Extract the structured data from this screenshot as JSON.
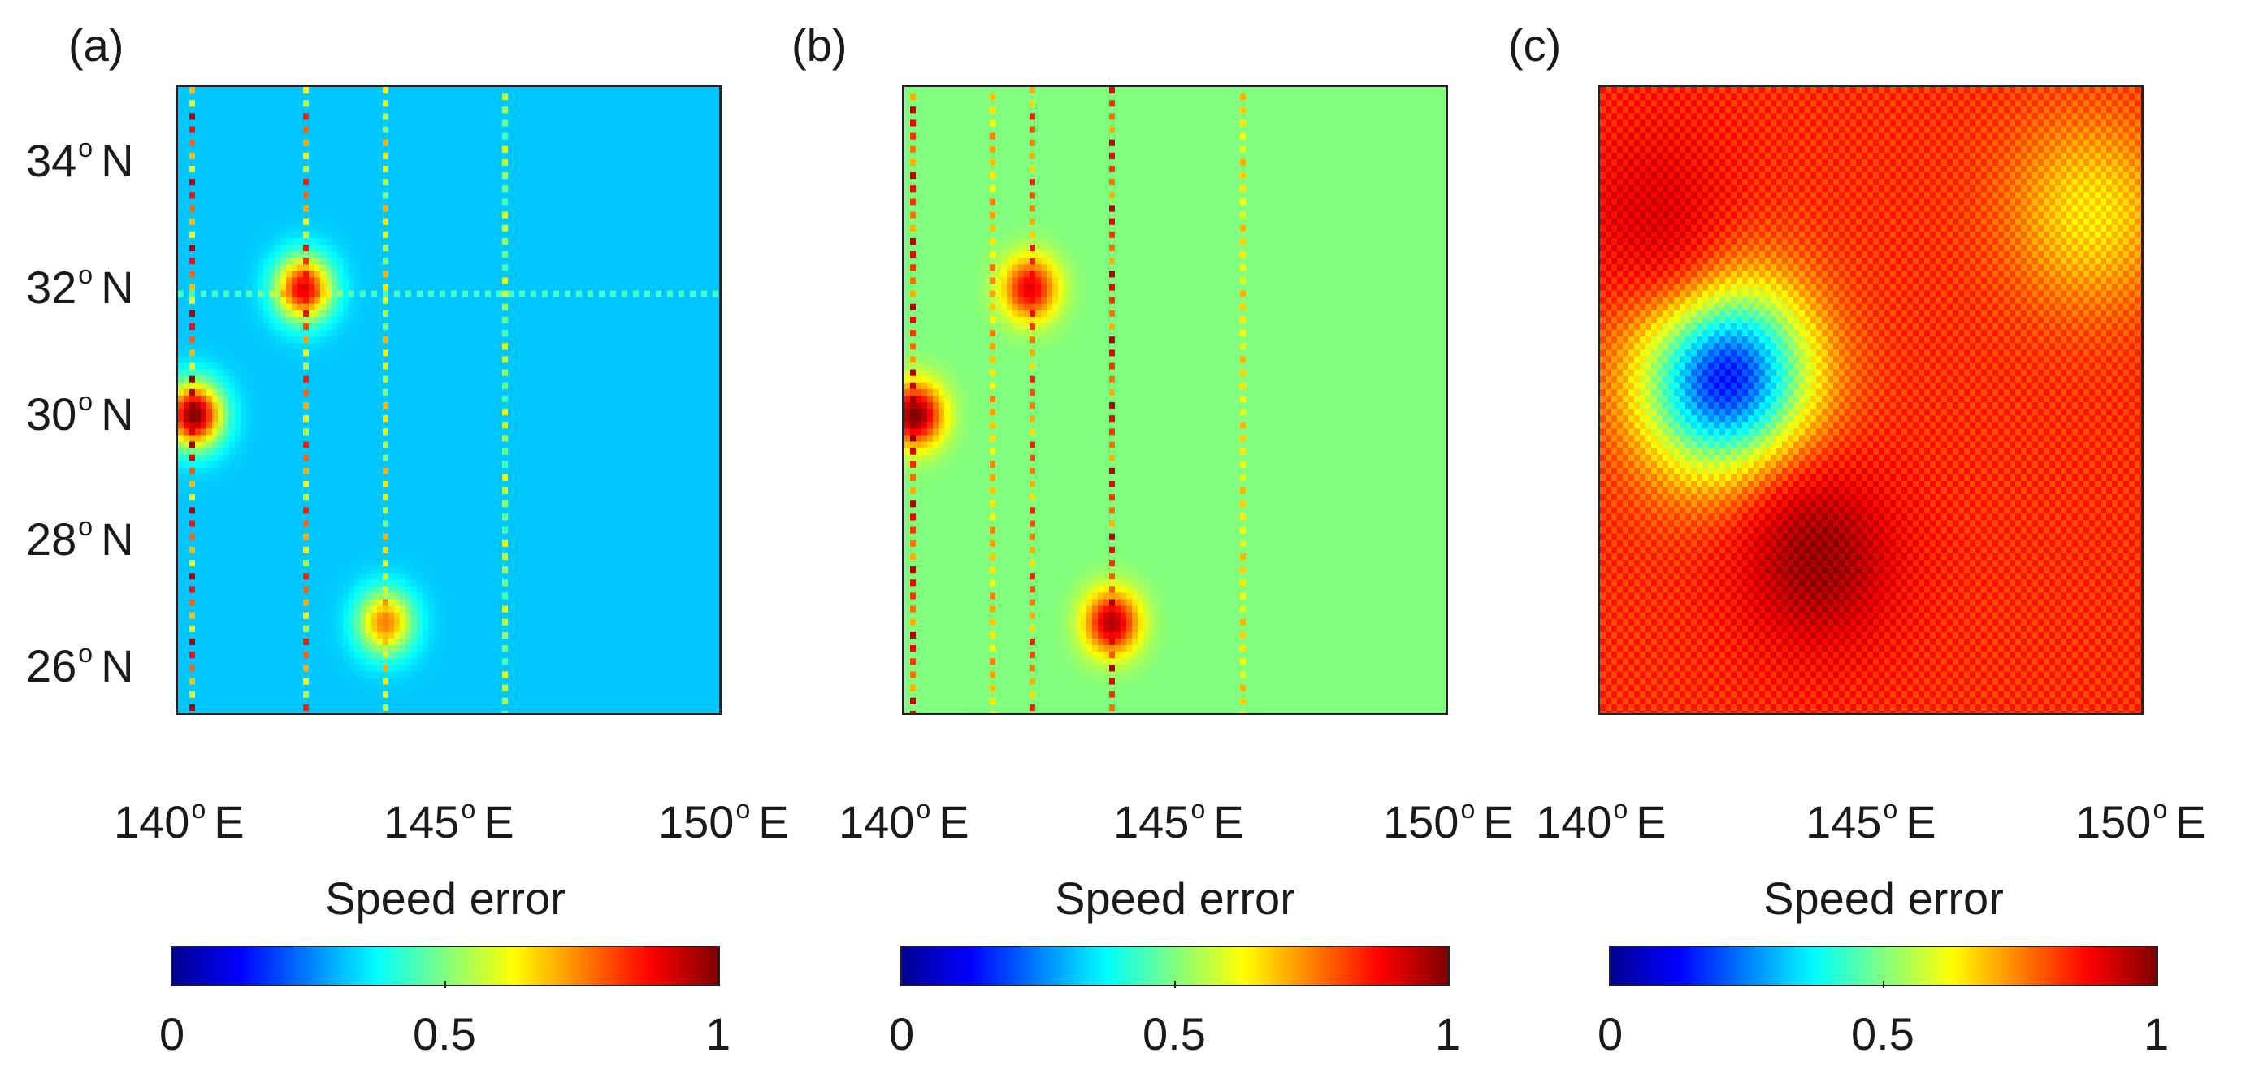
{
  "chart_data": [
    {
      "type": "heatmap",
      "panel_label": "(a)",
      "title": "",
      "xlabel": "",
      "ylabel": "",
      "xlim": [
        140,
        150
      ],
      "ylim": [
        25,
        35
      ],
      "xticks": [
        {
          "value": 140,
          "label": "140",
          "suffix": "E"
        },
        {
          "value": 145,
          "label": "145",
          "suffix": "E"
        },
        {
          "value": 150,
          "label": "150",
          "suffix": "E"
        }
      ],
      "yticks": [
        {
          "value": 34,
          "label": "34",
          "suffix": "N"
        },
        {
          "value": 32,
          "label": "32",
          "suffix": "N"
        },
        {
          "value": 30,
          "label": "30",
          "suffix": "N"
        },
        {
          "value": 28,
          "label": "28",
          "suffix": "N"
        },
        {
          "value": 26,
          "label": "26",
          "suffix": "N"
        }
      ],
      "field": {
        "base_value": 0.32,
        "features": [
          {
            "kind": "stripe-lon",
            "lon": 140.3,
            "value": 0.95
          },
          {
            "kind": "stripe-lon",
            "lon": 142.3,
            "value": 0.85
          },
          {
            "kind": "stripe-lon",
            "lon": 143.8,
            "value": 0.7
          },
          {
            "kind": "stripe-lon",
            "lon": 146.0,
            "value": 0.6
          },
          {
            "kind": "stripe-lat",
            "lat": 31.7,
            "value": 0.5
          },
          {
            "kind": "spot",
            "lon": 140.3,
            "lat": 29.8,
            "value": 1.0
          },
          {
            "kind": "spot",
            "lon": 142.3,
            "lat": 31.8,
            "value": 0.9
          },
          {
            "kind": "spot",
            "lon": 143.8,
            "lat": 26.5,
            "value": 0.75
          }
        ]
      },
      "colorbar": {
        "title": "Speed error",
        "min": 0,
        "max": 1,
        "ticks": [
          0,
          0.5,
          1
        ],
        "tick_labels": [
          "0",
          "0.5",
          "1"
        ],
        "colormap": "jet"
      }
    },
    {
      "type": "heatmap",
      "panel_label": "(b)",
      "title": "",
      "xlabel": "",
      "ylabel": "",
      "xlim": [
        140,
        150
      ],
      "ylim": [
        25,
        35
      ],
      "xticks": [
        {
          "value": 140,
          "label": "140",
          "suffix": "E"
        },
        {
          "value": 145,
          "label": "145",
          "suffix": "E"
        },
        {
          "value": 150,
          "label": "150",
          "suffix": "E"
        }
      ],
      "yticks": [],
      "field": {
        "base_value": 0.5,
        "features": [
          {
            "kind": "stripe-lon",
            "lon": 140.2,
            "value": 0.95
          },
          {
            "kind": "stripe-lon",
            "lon": 141.6,
            "value": 0.75
          },
          {
            "kind": "stripe-lon",
            "lon": 142.3,
            "value": 0.85
          },
          {
            "kind": "stripe-lon",
            "lon": 143.8,
            "value": 0.95
          },
          {
            "kind": "stripe-lon",
            "lon": 146.2,
            "value": 0.7
          },
          {
            "kind": "spot",
            "lon": 140.2,
            "lat": 29.8,
            "value": 1.0
          },
          {
            "kind": "spot",
            "lon": 142.3,
            "lat": 31.8,
            "value": 0.9
          },
          {
            "kind": "spot",
            "lon": 143.8,
            "lat": 26.5,
            "value": 0.95
          }
        ]
      },
      "colorbar": {
        "title": "Speed error",
        "min": 0,
        "max": 1,
        "ticks": [
          0,
          0.5,
          1
        ],
        "tick_labels": [
          "0",
          "0.5",
          "1"
        ],
        "colormap": "jet"
      }
    },
    {
      "type": "heatmap",
      "panel_label": "(c)",
      "title": "",
      "xlabel": "",
      "ylabel": "",
      "xlim": [
        140,
        150
      ],
      "ylim": [
        25,
        35
      ],
      "xticks": [
        {
          "value": 140,
          "label": "140",
          "suffix": "E"
        },
        {
          "value": 145,
          "label": "145",
          "suffix": "E"
        },
        {
          "value": 150,
          "label": "150",
          "suffix": "E"
        }
      ],
      "yticks": [],
      "field": {
        "base_value": 0.8,
        "features": [
          {
            "kind": "spot",
            "lon": 142.3,
            "lat": 30.4,
            "value": 0.1
          },
          {
            "kind": "spot",
            "lon": 144.0,
            "lat": 27.5,
            "value": 0.95
          },
          {
            "kind": "spot",
            "lon": 141.0,
            "lat": 33.0,
            "value": 0.88
          },
          {
            "kind": "spot",
            "lon": 149.0,
            "lat": 33.0,
            "value": 0.62
          }
        ]
      },
      "colorbar": {
        "title": "Speed error",
        "min": 0,
        "max": 1,
        "ticks": [
          0,
          0.5,
          1
        ],
        "tick_labels": [
          "0",
          "0.5",
          "1"
        ],
        "colormap": "jet"
      }
    }
  ]
}
